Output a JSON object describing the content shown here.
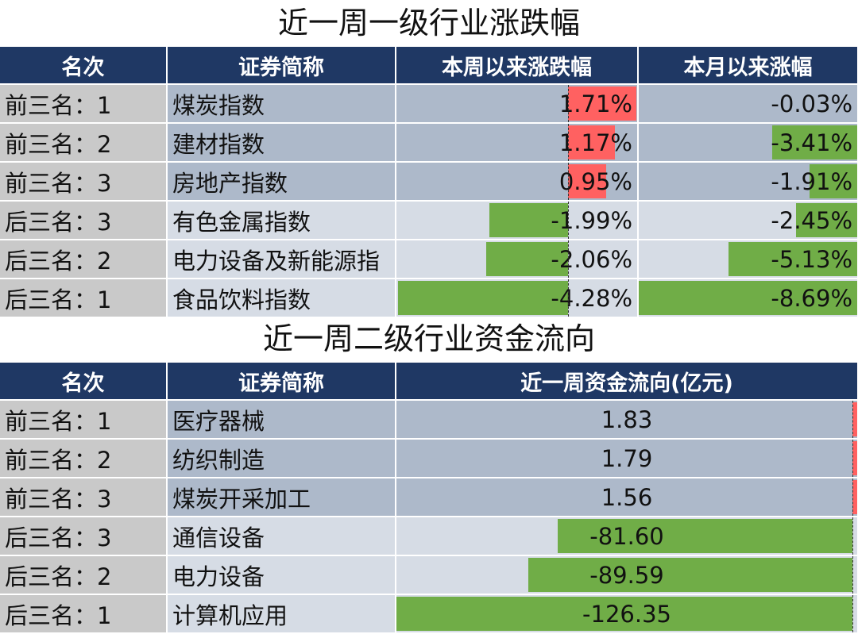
{
  "table1": {
    "title": "近一周一级行业涨跌幅",
    "headers": [
      "名次",
      "证券简称",
      "本周以来涨跌幅",
      "本月以来涨幅"
    ],
    "rows": [
      {
        "rank": "前三名：1",
        "name": "煤炭指数",
        "week": "1.71%",
        "week_value": 1.71,
        "month": "-0.03%",
        "month_value": -0.03,
        "group": "top"
      },
      {
        "rank": "前三名：2",
        "name": "建材指数",
        "week": "1.17%",
        "week_value": 1.17,
        "month": "-3.41%",
        "month_value": -3.41,
        "group": "top"
      },
      {
        "rank": "前三名：3",
        "name": "房地产指数",
        "week": "0.95%",
        "week_value": 0.95,
        "month": "-1.91%",
        "month_value": -1.91,
        "group": "top"
      },
      {
        "rank": "后三名：3",
        "name": "有色金属指数",
        "week": "-1.99%",
        "week_value": -1.99,
        "month": "-2.45%",
        "month_value": -2.45,
        "group": "bottom"
      },
      {
        "rank": "后三名：2",
        "name": "电力设备及新能源指",
        "week": "-2.06%",
        "week_value": -2.06,
        "month": "-5.13%",
        "month_value": -5.13,
        "group": "bottom"
      },
      {
        "rank": "后三名：1",
        "name": "食品饮料指数",
        "week": "-4.28%",
        "week_value": -4.28,
        "month": "-8.69%",
        "month_value": -8.69,
        "group": "bottom"
      }
    ]
  },
  "table2": {
    "title": "近一周二级行业资金流向",
    "headers": [
      "名次",
      "证券简称",
      "近一周资金流向(亿元)"
    ],
    "rows": [
      {
        "rank": "前三名：1",
        "name": "医疗器械",
        "flow": "1.83",
        "flow_value": 1.83,
        "group": "top"
      },
      {
        "rank": "前三名：2",
        "name": "纺织制造",
        "flow": "1.79",
        "flow_value": 1.79,
        "group": "top"
      },
      {
        "rank": "前三名：3",
        "name": "煤炭开采加工",
        "flow": "1.56",
        "flow_value": 1.56,
        "group": "top"
      },
      {
        "rank": "后三名：3",
        "name": "通信设备",
        "flow": "-81.60",
        "flow_value": -81.6,
        "group": "bottom"
      },
      {
        "rank": "后三名：2",
        "name": "电力设备",
        "flow": "-89.59",
        "flow_value": -89.59,
        "group": "bottom"
      },
      {
        "rank": "后三名：1",
        "name": "计算机应用",
        "flow": "-126.35",
        "flow_value": -126.35,
        "group": "bottom"
      }
    ]
  },
  "colors": {
    "header_bg": "#1f3864",
    "positive_bar": "#ff6161",
    "negative_bar": "#70ad47",
    "top_row_bg": "#adb9ca",
    "bottom_row_bg": "#d6dce5",
    "rank_bg": "#c9c9c9"
  }
}
